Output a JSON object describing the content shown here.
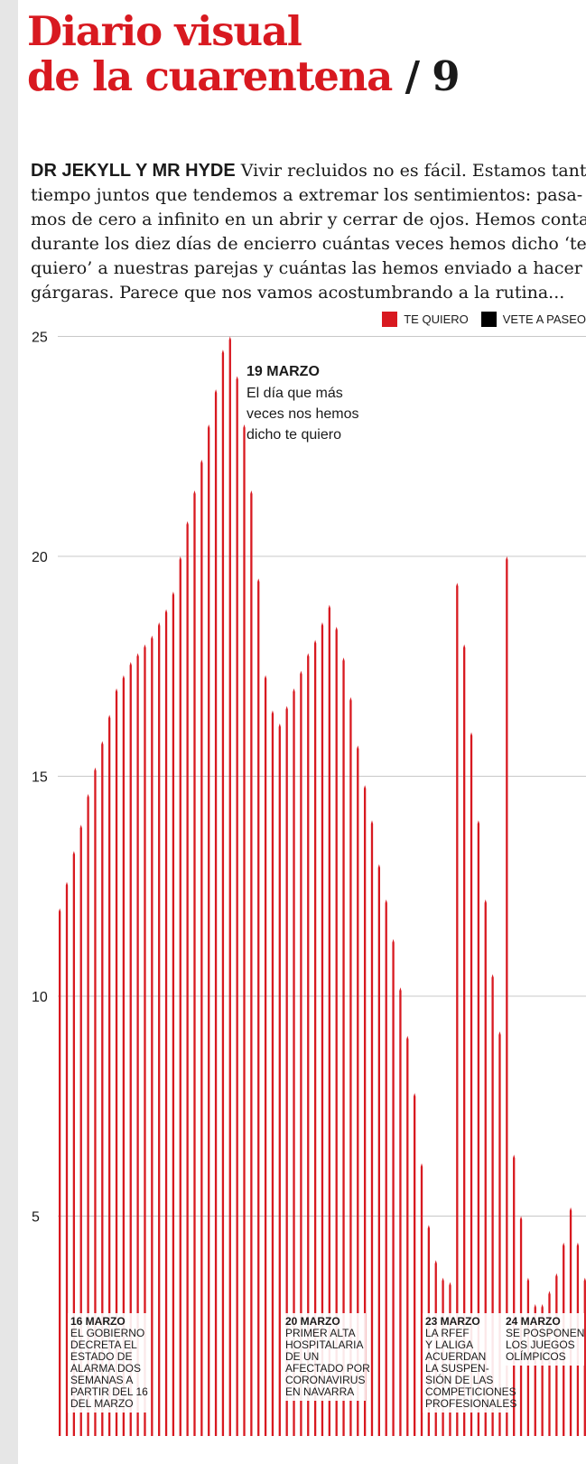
{
  "header": {
    "title_line1": "Diario visual",
    "title_line2": "de la cuarentena",
    "title_sep": "/",
    "title_number": "9"
  },
  "intro": {
    "lead": "DR JEKYLL Y MR HYDE",
    "lines": [
      "Vivir recluidos no es fácil. Estamos tanto",
      "tiempo juntos que tendemos a extremar los sentimientos: pasa-",
      "mos de cero a infinito en un abrir y cerrar de ojos. Hemos contado",
      "durante los diez días de encierro cuántas veces hemos dicho ‘te",
      "quiero’ a nuestras parejas y cuántas las hemos enviado a hacer",
      "gárgaras. Parece que nos vamos acostumbrando a la rutina..."
    ]
  },
  "chart_data": {
    "type": "bar",
    "ylim": [
      0,
      25.5
    ],
    "yticks": [
      5,
      10,
      15,
      20,
      25
    ],
    "grid": true,
    "legend_position": "top-right",
    "series": [
      {
        "name": "TE QUIERO",
        "color": "#d81920"
      },
      {
        "name": "VETE A PASEO",
        "color": "#000000"
      }
    ],
    "values": [
      12,
      12.6,
      13.3,
      13.9,
      14.6,
      15.2,
      15.8,
      16.4,
      17,
      17.3,
      17.6,
      17.8,
      18,
      18.2,
      18.5,
      18.8,
      19.2,
      20,
      20.8,
      21.5,
      22.2,
      23,
      23.8,
      24.7,
      25,
      24.1,
      23,
      21.5,
      19.5,
      17.3,
      16.5,
      16.2,
      16.6,
      17,
      17.4,
      17.8,
      18.1,
      18.5,
      18.9,
      18.4,
      17.7,
      16.8,
      15.7,
      14.8,
      14,
      13,
      12.2,
      11.3,
      10.2,
      9.1,
      7.8,
      6.2,
      4.8,
      4,
      3.6,
      3.5,
      19.4,
      18,
      16,
      14,
      12.2,
      10.5,
      9.2,
      20,
      6.4,
      5,
      3.6,
      3,
      3,
      3.3,
      3.7,
      4.4,
      5.2,
      4.4,
      3.6
    ],
    "annotations": [
      {
        "title": "19 MARZO",
        "lines": [
          "El día que más",
          "veces nos hemos",
          "dicho te quiero"
        ]
      }
    ],
    "events": [
      {
        "title": "16 MARZO",
        "lines": [
          "EL GOBIERNO",
          "DECRETA EL",
          "ESTADO DE",
          "ALARMA DOS",
          "SEMANAS A",
          "PARTIR DEL 16",
          "DEL MARZO"
        ]
      },
      {
        "title": "20 MARZO",
        "lines": [
          "PRIMER ALTA",
          "HOSPITALARIA",
          "DE UN",
          "AFECTADO POR",
          "CORONAVIRUS",
          "EN NAVARRA"
        ]
      },
      {
        "title": "23 MARZO",
        "lines": [
          "LA RFEF",
          "Y LALIGA",
          "ACUERDAN",
          "LA SUSPEN-",
          "SIÓN DE LAS",
          "COMPETICIONES",
          "PROFESIONALES"
        ]
      },
      {
        "title": "24 MARZO",
        "lines": [
          "SE POSPONEN",
          "LOS JUEGOS",
          "OLÍMPICOS"
        ]
      }
    ]
  }
}
